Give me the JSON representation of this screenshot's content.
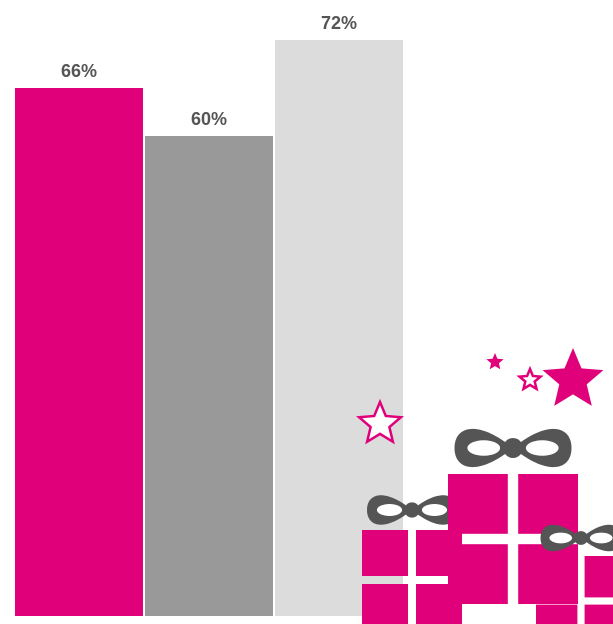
{
  "chart_data": {
    "type": "bar",
    "categories": [
      null,
      null,
      null
    ],
    "values": [
      66,
      60,
      72
    ],
    "value_labels": [
      "66%",
      "60%",
      "72%"
    ],
    "colors": [
      "#e0007a",
      "#999999",
      "#dcdcdc"
    ]
  }
}
